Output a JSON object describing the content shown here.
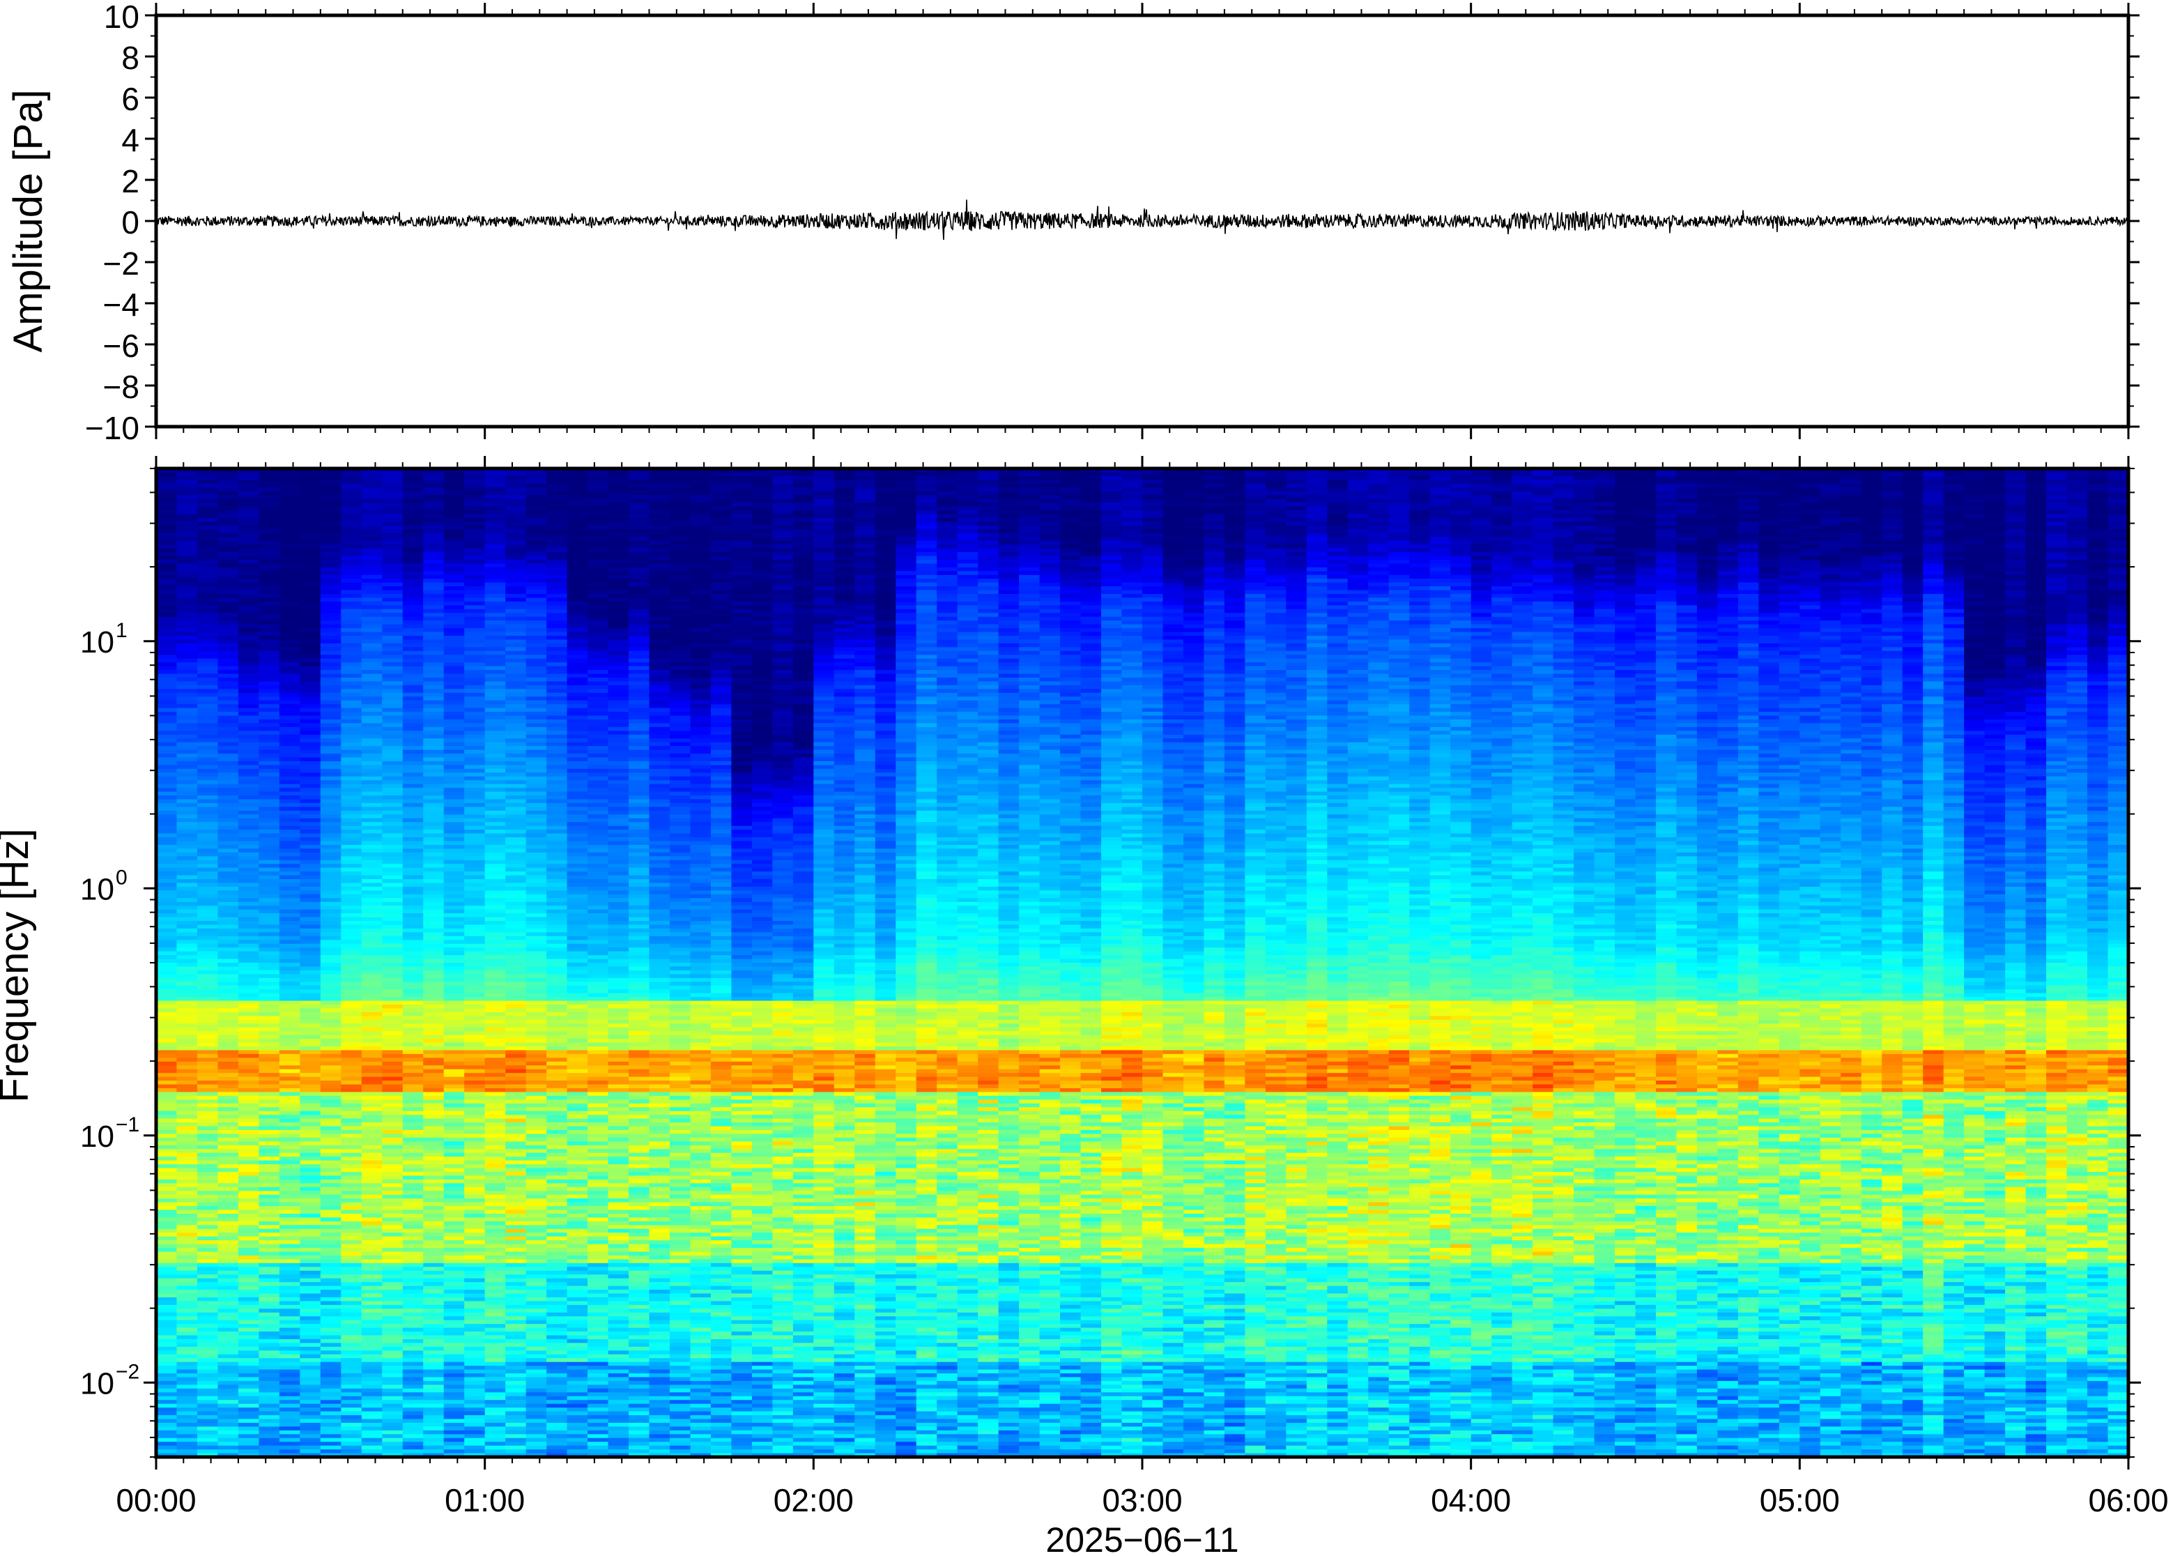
{
  "chart_data": [
    {
      "type": "line",
      "ylabel": "Amplitude [Pa]",
      "ylim": [
        -10,
        10
      ],
      "yticks": [
        10,
        8,
        6,
        4,
        2,
        0,
        -2,
        -4,
        -6,
        -8,
        -10
      ],
      "ytick_labels": [
        "10",
        "8",
        "6",
        "4",
        "2",
        "0",
        "−2",
        "−4",
        "−6",
        "−8",
        "−10"
      ],
      "x_range": [
        "00:00",
        "06:00"
      ],
      "description_series": {
        "x_hours": [
          0,
          0.5,
          1,
          1.5,
          2,
          2.25,
          2.5,
          3,
          3.5,
          4,
          4.35,
          4.5,
          5,
          5.5,
          6
        ],
        "amplitude_envelope_pa": [
          0.25,
          0.25,
          0.25,
          0.2,
          0.35,
          0.45,
          0.5,
          0.3,
          0.35,
          0.3,
          0.5,
          0.3,
          0.25,
          0.2,
          0.2
        ]
      }
    },
    {
      "type": "heatmap",
      "ylabel": "Frequency [Hz]",
      "yscale": "log",
      "ylim": [
        0.005,
        50
      ],
      "yticks": [
        0.01,
        0.1,
        1,
        10
      ],
      "ytick_labels": [
        {
          "base": "10",
          "exp": "−2"
        },
        {
          "base": "10",
          "exp": "−1"
        },
        {
          "base": "10",
          "exp": "0"
        },
        {
          "base": "10",
          "exp": "1"
        }
      ],
      "xlabel": "2025−06−11",
      "xticks": [
        "00:00",
        "01:00",
        "02:00",
        "03:00",
        "04:00",
        "05:00",
        "06:00"
      ],
      "colormap": [
        "#00007f",
        "#0000ff",
        "#007fff",
        "#00ffff",
        "#7fff7f",
        "#ffff00",
        "#ff7f00",
        "#ff0000"
      ],
      "colorscale_note_values": {
        "time_columns_hours": [
          0,
          0.25,
          0.5,
          0.75,
          1,
          1.25,
          1.5,
          1.75,
          2,
          2.25,
          2.5,
          2.75,
          3,
          3.25,
          3.5,
          3.75,
          4,
          4.25,
          4.5,
          4.75,
          5,
          5.25,
          5.5,
          5.75
        ],
        "upper_cutoff_hz": [
          8,
          6,
          15,
          16,
          15,
          8,
          5,
          2,
          8,
          22,
          17,
          15,
          14,
          15,
          16,
          17,
          14,
          12,
          14,
          15,
          14,
          13,
          5,
          8
        ]
      },
      "dominant_band_hz": [
        0.15,
        0.22
      ]
    }
  ]
}
